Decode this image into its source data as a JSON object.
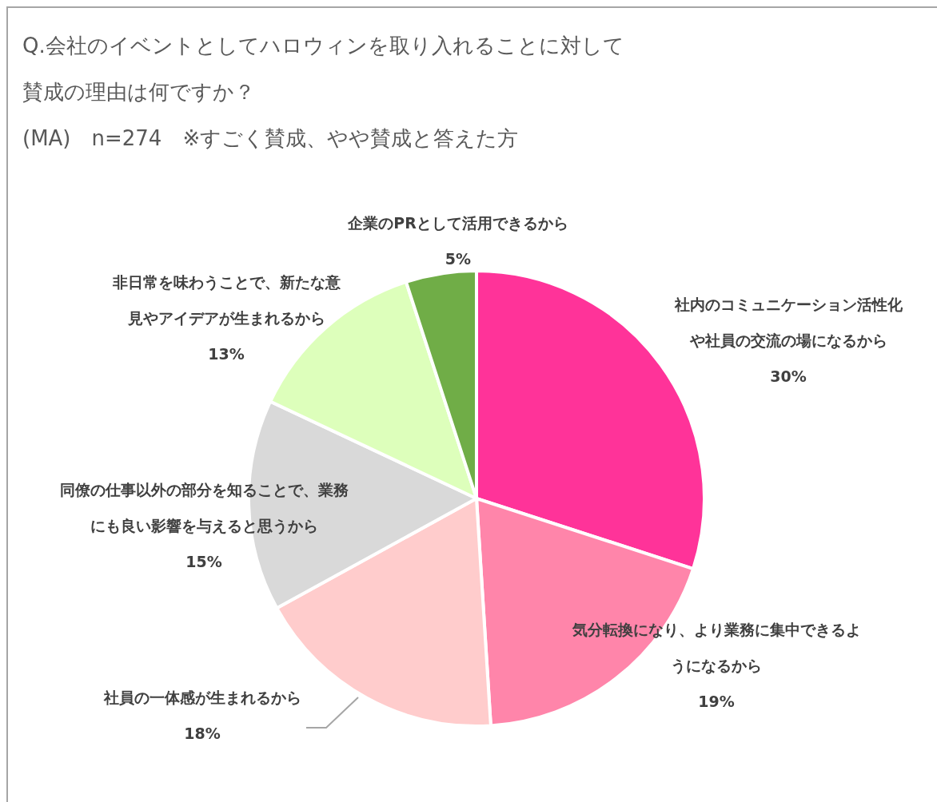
{
  "chart_data": {
    "type": "pie",
    "title": "Q.会社のイベントとしてハロウィンを取り入れることに対して賛成の理由は何ですか？",
    "subtitle": "(MA)　n=274　※すごく賛成、やや賛成と答えた方",
    "categories": [
      "社内のコミュニケーション活性化や社員の交流の場になるから",
      "気分転換になり、より業務に集中できるようになるから",
      "社員の一体感が生まれるから",
      "同僚の仕事以外の部分を知ることで、業務にも良い影響を与えると思うから",
      "非日常を味わうことで、新たな意見やアイデアが生まれるから",
      "企業のPRとして活用できるから"
    ],
    "values": [
      30,
      19,
      18,
      15,
      13,
      5
    ],
    "colors": [
      "#ff3399",
      "#ff85aa",
      "#ffcccc",
      "#d9d9d9",
      "#ddffbb",
      "#70ad47"
    ],
    "value_labels": [
      "30%",
      "19%",
      "18%",
      "15%",
      "13%",
      "5%"
    ]
  }
}
